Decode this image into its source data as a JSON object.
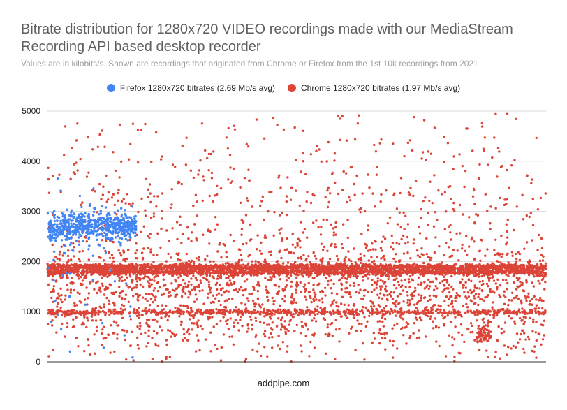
{
  "chart_data": {
    "type": "scatter",
    "title": "Bitrate distribution for 1280x720 VIDEO recordings made with our MediaStream Recording API based desktop recorder",
    "subtitle": "Values are in kilobits/s. Shown are recordings that originated from Chrome or Firefox from the 1st 10k recordings from 2021",
    "xlabel": "",
    "ylabel": "",
    "ylim": [
      0,
      5000
    ],
    "y_ticks": [
      0,
      1000,
      2000,
      3000,
      4000,
      5000
    ],
    "x_ticks_shown": false,
    "gridlines": true,
    "legend_position": "top-center",
    "series": [
      {
        "name": "Firefox 1280x720 bitrates (2.69 Mb/s avg)",
        "color": "#4285f4",
        "x_range": [
          0,
          1780
        ],
        "clusters": [
          {
            "center": 2700,
            "spread": 130,
            "count": 600
          },
          {
            "center": 2600,
            "spread": 400,
            "count": 60
          },
          {
            "center": 1400,
            "spread": 600,
            "count": 25
          }
        ]
      },
      {
        "name": "Chrome 1280x720 bitrates (1.97 Mb/s avg)",
        "color": "#db4437",
        "x_range": [
          0,
          10000
        ],
        "clusters": [
          {
            "center": 1890,
            "spread": 30,
            "count": 1700
          },
          {
            "center": 1790,
            "spread": 30,
            "count": 1500
          },
          {
            "center": 990,
            "spread": 25,
            "count": 700
          },
          {
            "center": 1500,
            "spread": 480,
            "count": 1600
          },
          {
            "center": 3000,
            "spread": 1100,
            "count": 650
          },
          {
            "center": 550,
            "spread": 330,
            "count": 350
          },
          {
            "center": 530,
            "spread": 80,
            "count": 70,
            "x_range": [
              8600,
              8900
            ]
          }
        ]
      }
    ]
  },
  "footer": "addpipe.com"
}
